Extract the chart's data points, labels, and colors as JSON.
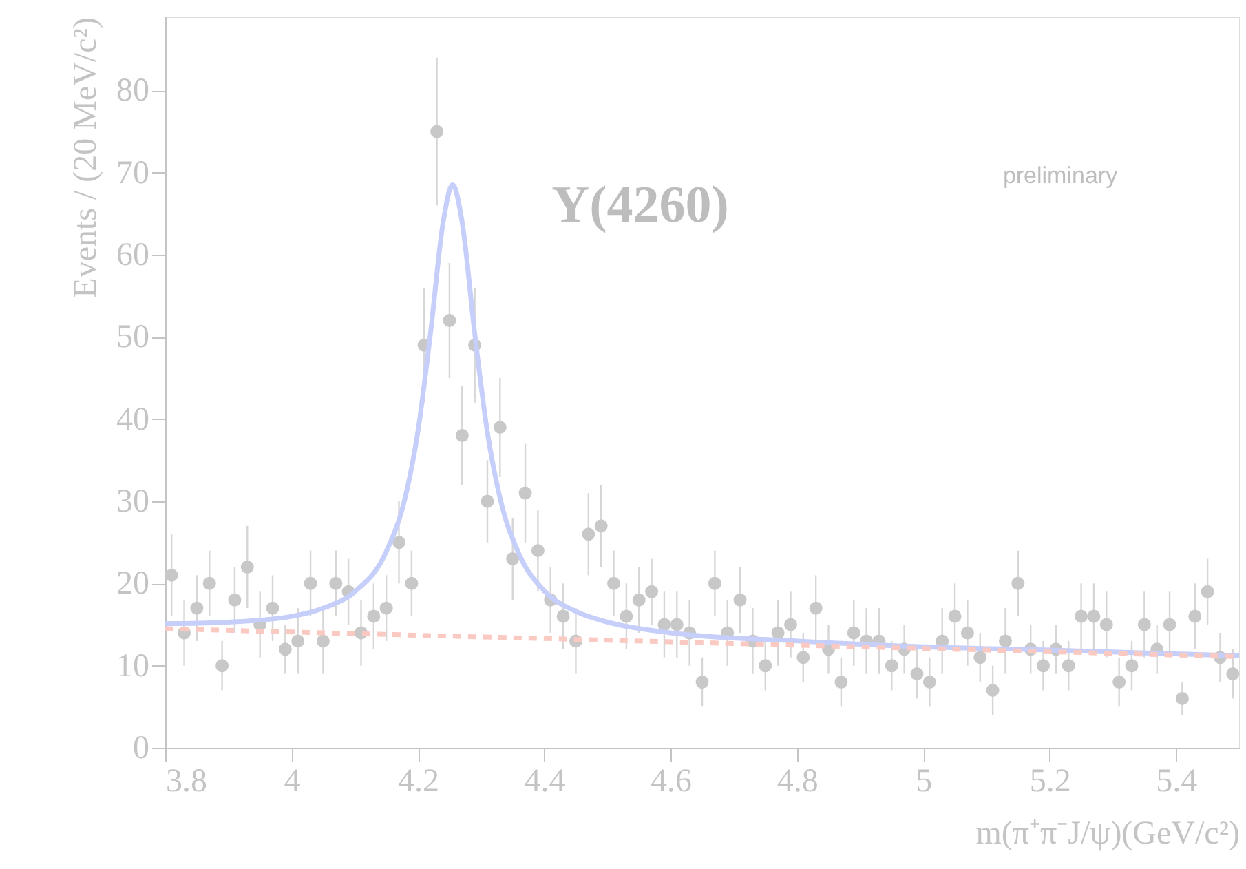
{
  "chart_data": {
    "type": "scatter",
    "xlabel": "m(π⁺π⁻J/ψ)(GeV/c²)",
    "ylabel": "Events / (20 MeV/c²)",
    "annotations": [
      "Y(4260)",
      "preliminary"
    ],
    "xlim": [
      3.8,
      5.5
    ],
    "xticks": [
      3.8,
      4,
      4.2,
      4.4,
      4.6,
      4.8,
      5,
      5.2,
      5.4
    ],
    "ylim": [
      0,
      89
    ],
    "yticks": [
      0,
      10,
      20,
      30,
      40,
      50,
      60,
      70,
      80
    ],
    "grid": false,
    "series": [
      {
        "marker": "circle",
        "color": "#c8c8c8",
        "x": [
          3.81,
          3.83,
          3.85,
          3.87,
          3.89,
          3.91,
          3.93,
          3.95,
          3.97,
          3.99,
          4.01,
          4.03,
          4.05,
          4.07,
          4.09,
          4.11,
          4.13,
          4.15,
          4.17,
          4.19,
          4.21,
          4.23,
          4.25,
          4.27,
          4.29,
          4.31,
          4.33,
          4.35,
          4.37,
          4.39,
          4.41,
          4.43,
          4.45,
          4.47,
          4.49,
          4.51,
          4.53,
          4.55,
          4.57,
          4.59,
          4.61,
          4.63,
          4.65,
          4.67,
          4.69,
          4.71,
          4.73,
          4.75,
          4.77,
          4.79,
          4.81,
          4.83,
          4.85,
          4.87,
          4.89,
          4.91,
          4.93,
          4.95,
          4.97,
          4.99,
          5.01,
          5.03,
          5.05,
          5.07,
          5.09,
          5.11,
          5.13,
          5.15,
          5.17,
          5.19,
          5.21,
          5.23,
          5.25,
          5.27,
          5.29,
          5.31,
          5.33,
          5.35,
          5.37,
          5.39,
          5.41,
          5.43,
          5.45,
          5.47,
          5.49
        ],
        "values": [
          21,
          14,
          17,
          20,
          10,
          18,
          22,
          15,
          17,
          12,
          13,
          20,
          13,
          20,
          19,
          14,
          16,
          17,
          25,
          20,
          49,
          75,
          52,
          38,
          49,
          30,
          39,
          23,
          31,
          24,
          18,
          16,
          13,
          26,
          27,
          20,
          16,
          18,
          19,
          15,
          15,
          14,
          8,
          20,
          14,
          18,
          13,
          10,
          14,
          15,
          11,
          17,
          12,
          8,
          14,
          13,
          13,
          10,
          12,
          9,
          8,
          13,
          16,
          14,
          11,
          7,
          13,
          20,
          12,
          10,
          12,
          10,
          16,
          16,
          15,
          8,
          10,
          15,
          12,
          15,
          6,
          16,
          19,
          11,
          9
        ],
        "errors": [
          5,
          4,
          4,
          4,
          3,
          4,
          5,
          4,
          4,
          3,
          4,
          4,
          4,
          4,
          4,
          4,
          4,
          4,
          5,
          4,
          7,
          9,
          7,
          6,
          7,
          5,
          6,
          5,
          6,
          5,
          4,
          4,
          4,
          5,
          5,
          4,
          4,
          4,
          4,
          4,
          4,
          4,
          3,
          4,
          4,
          4,
          4,
          3,
          4,
          4,
          3,
          4,
          3,
          3,
          4,
          4,
          4,
          3,
          3,
          3,
          3,
          4,
          4,
          4,
          3,
          3,
          4,
          4,
          3,
          3,
          3,
          3,
          4,
          4,
          4,
          3,
          3,
          4,
          3,
          4,
          2,
          4,
          4,
          3,
          3
        ]
      },
      {
        "type": "line",
        "line_style": "solid",
        "color": "#c6cefa",
        "x": [
          3.8,
          3.9,
          4.0,
          4.05,
          4.1,
          4.15,
          4.18,
          4.2,
          4.22,
          4.24,
          4.255,
          4.27,
          4.29,
          4.31,
          4.33,
          4.36,
          4.4,
          4.45,
          4.5,
          4.6,
          4.8,
          5.0,
          5.2,
          5.5
        ],
        "values": [
          15.1,
          15.3,
          16.0,
          17.0,
          19.0,
          23.9,
          30.5,
          38.5,
          50.5,
          64,
          68.5,
          64,
          50.4,
          38.4,
          30.4,
          23.6,
          19.1,
          16.6,
          15.3,
          14.0,
          13.0,
          12.3,
          11.9,
          11.2
        ]
      },
      {
        "type": "line",
        "line_style": "dashed",
        "color": "#f9c9c2",
        "x": [
          3.8,
          4.0,
          4.2,
          4.4,
          4.6,
          4.8,
          5.0,
          5.2,
          5.4,
          5.5
        ],
        "values": [
          14.5,
          14.1,
          13.7,
          13.3,
          12.9,
          12.5,
          12.1,
          11.7,
          11.3,
          11.1
        ]
      }
    ]
  }
}
